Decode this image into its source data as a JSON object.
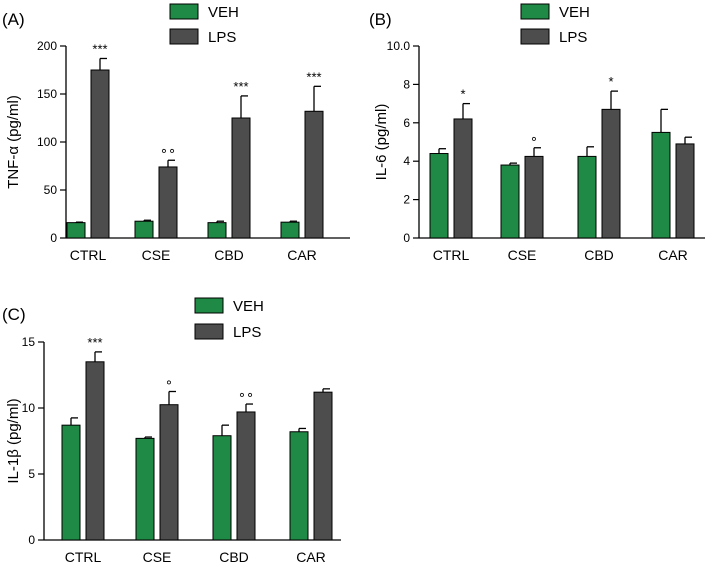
{
  "colors": {
    "VEH": "#1f8a45",
    "LPS": "#4d4d4d"
  },
  "chart_data": [
    {
      "type": "bar",
      "panel_label": "(A)",
      "ylabel": "TNF-α (pg/ml)",
      "ylim": [
        0,
        200
      ],
      "yticks": [
        0,
        50,
        100,
        150,
        200
      ],
      "yticks_text": [
        "0",
        "50",
        "100",
        "150",
        "200"
      ],
      "categories": [
        "CTRL",
        "CSE",
        "CBD",
        "CAR"
      ],
      "legend": [
        "VEH",
        "LPS"
      ],
      "series": [
        {
          "name": "VEH",
          "values": [
            16,
            17.5,
            16,
            16.5
          ],
          "errors": [
            0.5,
            1,
            1.5,
            1
          ]
        },
        {
          "name": "LPS",
          "values": [
            175,
            74,
            125,
            132
          ],
          "errors": [
            12,
            7,
            23,
            26
          ]
        }
      ],
      "annotations": [
        "***",
        "∘∘",
        "***",
        "***"
      ]
    },
    {
      "type": "bar",
      "panel_label": "(B)",
      "ylabel": "IL-6 (pg/ml)",
      "ylim": [
        0,
        10
      ],
      "yticks": [
        0,
        2,
        4,
        6,
        8,
        10
      ],
      "yticks_text": [
        "0",
        "2",
        "4",
        "6",
        "8",
        "10.0"
      ],
      "categories": [
        "CTRL",
        "CSE",
        "CBD",
        "CAR"
      ],
      "legend": [
        "VEH",
        "LPS"
      ],
      "series": [
        {
          "name": "VEH",
          "values": [
            4.4,
            3.8,
            4.25,
            5.5
          ],
          "errors": [
            0.25,
            0.1,
            0.5,
            1.2
          ]
        },
        {
          "name": "LPS",
          "values": [
            6.2,
            4.25,
            6.7,
            4.9
          ],
          "errors": [
            0.8,
            0.45,
            0.95,
            0.35
          ]
        }
      ],
      "annotations": [
        "*",
        "∘",
        "*",
        ""
      ]
    },
    {
      "type": "bar",
      "panel_label": "(C)",
      "ylabel": "IL-1β (pg/ml)",
      "ylim": [
        0,
        15
      ],
      "yticks": [
        0,
        5,
        10,
        15
      ],
      "yticks_text": [
        "0",
        "5",
        "10",
        "15"
      ],
      "categories": [
        "CTRL",
        "CSE",
        "CBD",
        "CAR"
      ],
      "legend": [
        "VEH",
        "LPS"
      ],
      "series": [
        {
          "name": "VEH",
          "values": [
            8.7,
            7.7,
            7.9,
            8.2
          ],
          "errors": [
            0.55,
            0.1,
            0.8,
            0.25
          ]
        },
        {
          "name": "LPS",
          "values": [
            13.5,
            10.25,
            9.7,
            11.2
          ],
          "errors": [
            0.75,
            1.0,
            0.6,
            0.25
          ]
        }
      ],
      "annotations": [
        "***",
        "∘",
        "∘∘",
        ""
      ]
    }
  ]
}
